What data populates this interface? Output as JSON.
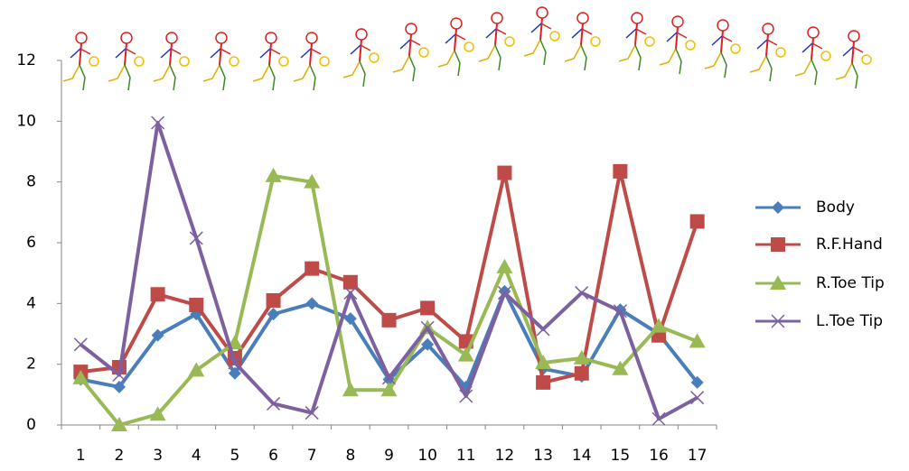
{
  "chart_data": {
    "type": "line",
    "categories": [
      "1",
      "2",
      "3",
      "4",
      "5",
      "6",
      "7",
      "8",
      "9",
      "10",
      "11",
      "12",
      "13",
      "14",
      "15",
      "16",
      "17"
    ],
    "ylim": [
      0,
      12
    ],
    "yticks": [
      0,
      2,
      4,
      6,
      8,
      10,
      12
    ],
    "series": [
      {
        "name": "Body",
        "color": "#4a7ebb",
        "marker": "diamond",
        "values": [
          1.5,
          1.25,
          2.95,
          3.65,
          1.7,
          3.65,
          4.0,
          3.5,
          1.5,
          2.65,
          1.25,
          4.4,
          1.85,
          1.6,
          3.8,
          3.0,
          1.4
        ]
      },
      {
        "name": "R.F.Hand",
        "color": "#be4b48",
        "marker": "square",
        "values": [
          1.75,
          1.9,
          4.3,
          3.95,
          2.2,
          4.1,
          5.15,
          4.7,
          3.45,
          3.85,
          2.75,
          8.3,
          1.4,
          1.7,
          8.35,
          2.95,
          6.7
        ]
      },
      {
        "name": "R.Toe Tip",
        "color": "#98b954",
        "marker": "triangle",
        "values": [
          1.55,
          0.0,
          0.35,
          1.8,
          2.7,
          8.2,
          8.0,
          1.15,
          1.15,
          3.2,
          2.3,
          5.2,
          2.05,
          2.2,
          1.85,
          3.25,
          2.75
        ]
      },
      {
        "name": "L.Toe Tip",
        "color": "#7d60a0",
        "marker": "x",
        "values": [
          2.65,
          1.65,
          9.95,
          6.15,
          2.05,
          0.7,
          0.4,
          4.35,
          1.55,
          3.2,
          0.95,
          4.35,
          3.15,
          4.35,
          3.75,
          0.2,
          0.9
        ]
      }
    ]
  }
}
